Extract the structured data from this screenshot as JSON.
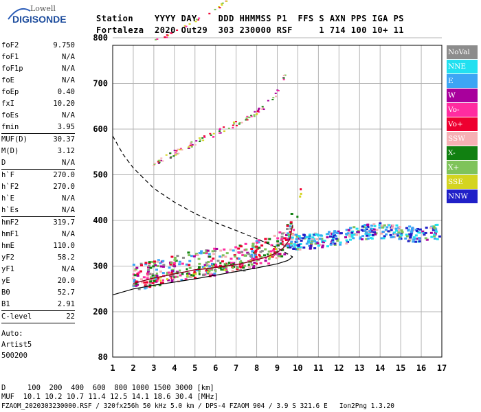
{
  "logo": {
    "line1": "Lowell",
    "line2": "DIGISONDE"
  },
  "header": {
    "line1": "Station    YYYY DAY    DDD HHMMSS P1  FFS S AXN PPS IGA PS",
    "line2": "Fortaleza  2020 Out29  303 230000 RSF     1 714 100 10+ 11"
  },
  "params_groups": [
    [
      {
        "label": "foF2",
        "value": "9.750"
      },
      {
        "label": "foF1",
        "value": "N/A"
      },
      {
        "label": "foF1p",
        "value": "N/A"
      },
      {
        "label": "foE",
        "value": "N/A"
      },
      {
        "label": "foEp",
        "value": "0.40"
      },
      {
        "label": "fxI",
        "value": "10.20"
      },
      {
        "label": "foEs",
        "value": "N/A"
      },
      {
        "label": "fmin",
        "value": "3.95"
      }
    ],
    [
      {
        "label": "MUF(D)",
        "value": "30.37"
      },
      {
        "label": "M(D)",
        "value": "3.12"
      },
      {
        "label": "D",
        "value": "N/A"
      }
    ],
    [
      {
        "label": "h`F",
        "value": "270.0"
      },
      {
        "label": "h`F2",
        "value": "270.0"
      },
      {
        "label": "h`E",
        "value": "N/A"
      },
      {
        "label": "h`Es",
        "value": "N/A"
      }
    ],
    [
      {
        "label": "hmF2",
        "value": "319.7"
      },
      {
        "label": "hmF1",
        "value": "N/A"
      },
      {
        "label": "hmE",
        "value": "110.0"
      },
      {
        "label": "yF2",
        "value": "58.2"
      },
      {
        "label": "yF1",
        "value": "N/A"
      },
      {
        "label": "yE",
        "value": "20.0"
      },
      {
        "label": "B0",
        "value": "52.7"
      },
      {
        "label": "B1",
        "value": "2.91"
      }
    ],
    [
      {
        "label": "C-level",
        "value": "22"
      }
    ]
  ],
  "auto": {
    "line1": "Auto:",
    "line2": "Artist5",
    "line3": "500200"
  },
  "legend": [
    {
      "label": "NoVal",
      "color": "#8c8c8c"
    },
    {
      "label": "NNE",
      "color": "#22e0f0"
    },
    {
      "label": "E",
      "color": "#3da5f4"
    },
    {
      "label": "W",
      "color": "#a8009c"
    },
    {
      "label": "Vo-",
      "color": "#ff2ca0"
    },
    {
      "label": "Vo+",
      "color": "#ee0030"
    },
    {
      "label": "SSW",
      "color": "#f6b0b4"
    },
    {
      "label": "X-",
      "color": "#118011"
    },
    {
      "label": "X+",
      "color": "#7fc35a"
    },
    {
      "label": "SSE",
      "color": "#d4d420"
    },
    {
      "label": "NNW",
      "color": "#2020c8"
    }
  ],
  "footer": {
    "line1": "D     100  200  400  600  800 1000 1500 3000 [km]",
    "line2": "MUF  10.1 10.2 10.7 11.4 12.5 14.1 18.6 30.4 [MHz]",
    "line3": "FZAOM_2020303230000.RSF / 320fx256h 50 kHz 5.0 km / DPS-4 FZAOM 904 / 3.9 S 321.6 E   Ion2Png 1.3.20"
  },
  "chart_data": {
    "type": "scatter",
    "xlim": [
      1,
      17
    ],
    "ylim": [
      80,
      900
    ],
    "x_ticks": [
      1,
      2,
      3,
      4,
      5,
      6,
      7,
      8,
      9,
      10,
      11,
      12,
      13,
      14,
      15,
      16,
      17
    ],
    "y_ticks": [
      80,
      200,
      300,
      400,
      500,
      600,
      700,
      800,
      900
    ],
    "grid": true,
    "traces": [
      {
        "name": "O-trace",
        "x": [
          2.0,
          2.5,
          3.0,
          3.5,
          4.0,
          4.5,
          5.0,
          5.5,
          6.0,
          6.5,
          7.0,
          7.5,
          8.0,
          8.5,
          9.0,
          9.3,
          9.6,
          9.75
        ],
        "y": [
          262,
          268,
          274,
          278,
          283,
          287,
          292,
          294,
          297,
          300,
          303,
          308,
          314,
          320,
          330,
          340,
          358,
          390
        ]
      },
      {
        "name": "X-trace",
        "x": [
          3.0,
          4.0,
          5.0,
          6.0,
          7.0,
          8.0,
          8.6,
          9.2,
          9.6,
          10.0,
          10.2
        ],
        "y": [
          270,
          278,
          285,
          292,
          300,
          310,
          320,
          340,
          360,
          400,
          480
        ]
      },
      {
        "name": "2nd hop",
        "x": [
          3.0,
          4.0,
          5.0,
          6.0,
          7.0,
          8.0,
          8.5,
          9.0,
          9.4
        ],
        "y": [
          520,
          545,
          568,
          588,
          610,
          634,
          652,
          678,
          720
        ]
      },
      {
        "name": "3rd hop",
        "x": [
          3.0,
          4.0,
          5.0,
          6.0,
          7.0
        ],
        "y": [
          790,
          810,
          835,
          860,
          895
        ]
      },
      {
        "name": "Spread F",
        "x": [
          9.5,
          10.0,
          11.0,
          12.0,
          13.0,
          14.0,
          15.0,
          16.0,
          16.9
        ],
        "y": [
          350,
          345,
          350,
          355,
          365,
          370,
          365,
          360,
          370
        ]
      }
    ],
    "profile_curves": [
      {
        "name": "model",
        "style": "dashed",
        "x": [
          1.0,
          1.5,
          2.0,
          3.0,
          4.0,
          5.0,
          6.0,
          7.0,
          8.0,
          9.0,
          9.75
        ],
        "y": [
          585,
          545,
          515,
          470,
          440,
          415,
          395,
          378,
          360,
          340,
          320
        ]
      },
      {
        "name": "true-height",
        "style": "solid",
        "x": [
          1.0,
          2.0,
          3.0,
          4.0,
          5.0,
          6.0,
          7.0,
          8.0,
          9.0,
          9.5,
          9.75
        ],
        "y": [
          237,
          250,
          258,
          265,
          272,
          280,
          288,
          296,
          305,
          312,
          320
        ]
      }
    ]
  }
}
